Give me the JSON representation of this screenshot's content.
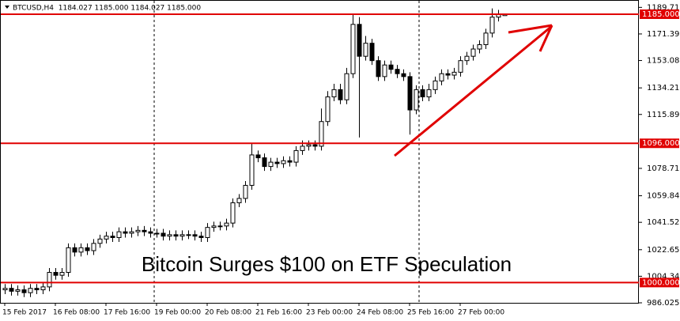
{
  "chart_data": {
    "type": "candlestick",
    "header": "BTCUSD,H4  1184.027 1185.000 1184.027 1185.000",
    "annotation": "Bitcoin Surges $100 on ETF Speculation",
    "categories": [
      "15 Feb 2017",
      null,
      null,
      null,
      null,
      null,
      null,
      null,
      "16 Feb 08:00",
      null,
      null,
      null,
      null,
      null,
      null,
      null,
      "17 Feb 16:00",
      null,
      null,
      null,
      null,
      null,
      null,
      null,
      "19 Feb 00:00",
      null,
      null,
      null,
      null,
      null,
      null,
      null,
      "20 Feb 08:00",
      null,
      null,
      null,
      null,
      null,
      null,
      null,
      "21 Feb 16:00",
      null,
      null,
      null,
      null,
      null,
      null,
      null,
      "23 Feb 00:00",
      null,
      null,
      null,
      null,
      null,
      null,
      null,
      "24 Feb 08:00",
      null,
      null,
      null,
      null,
      null,
      null,
      null,
      "25 Feb 16:00",
      null,
      null,
      null,
      null,
      null,
      null,
      null,
      "27 Feb 00:00",
      null,
      null,
      null,
      null,
      null,
      null,
      null
    ],
    "open": [
      995,
      996,
      994,
      995,
      993,
      996,
      995,
      997,
      1007,
      1005,
      1007,
      1024,
      1021,
      1024,
      1022,
      1027,
      1030,
      1032,
      1031,
      1035,
      1034,
      1035,
      1036,
      1035,
      1034,
      1034,
      1032,
      1033,
      1032,
      1033,
      1033,
      1032,
      1031,
      1038,
      1039,
      1039,
      1041,
      1055,
      1058,
      1067,
      1088,
      1086,
      1080,
      1083,
      1082,
      1084,
      1083,
      1091,
      1094,
      1095,
      1094,
      1111,
      1128,
      1133,
      1126,
      1144,
      1178,
      1156,
      1165,
      1153,
      1142,
      1150,
      1147,
      1144,
      1142,
      1119,
      1133,
      1128,
      1133,
      1139,
      1144,
      1143,
      1145,
      1153,
      1156,
      1161,
      1164,
      1172,
      1183,
      1184.027
    ],
    "high": [
      999,
      999,
      998,
      998,
      999,
      999,
      1000,
      1010,
      1010,
      1010,
      1027,
      1027,
      1027,
      1027,
      1030,
      1033,
      1035,
      1035,
      1038,
      1038,
      1038,
      1039,
      1039,
      1038,
      1037,
      1037,
      1036,
      1036,
      1036,
      1036,
      1036,
      1035,
      1041,
      1042,
      1042,
      1044,
      1058,
      1061,
      1070,
      1096,
      1091,
      1089,
      1086,
      1086,
      1087,
      1087,
      1094,
      1098,
      1098,
      1098,
      1120,
      1132,
      1137,
      1137,
      1148,
      1185,
      1183,
      1170,
      1168,
      1156,
      1153,
      1153,
      1150,
      1147,
      1145,
      1136,
      1136,
      1137,
      1142,
      1147,
      1147,
      1148,
      1156,
      1159,
      1164,
      1167,
      1175,
      1189,
      1188,
      1185
    ],
    "low": [
      992,
      991,
      991,
      990,
      990,
      992,
      992,
      994,
      1002,
      1002,
      1004,
      1018,
      1018,
      1019,
      1019,
      1024,
      1027,
      1028,
      1028,
      1031,
      1031,
      1032,
      1032,
      1031,
      1031,
      1029,
      1029,
      1029,
      1029,
      1030,
      1029,
      1028,
      1028,
      1035,
      1036,
      1036,
      1038,
      1052,
      1055,
      1064,
      1083,
      1077,
      1077,
      1079,
      1079,
      1080,
      1080,
      1088,
      1091,
      1091,
      1091,
      1108,
      1125,
      1123,
      1123,
      1141,
      1100,
      1153,
      1150,
      1139,
      1139,
      1144,
      1141,
      1139,
      1102,
      1116,
      1125,
      1125,
      1130,
      1136,
      1140,
      1140,
      1142,
      1150,
      1153,
      1158,
      1161,
      1169,
      1180,
      1184.027
    ],
    "close": [
      996,
      994,
      995,
      993,
      996,
      995,
      997,
      1007,
      1005,
      1007,
      1024,
      1021,
      1024,
      1022,
      1027,
      1030,
      1032,
      1031,
      1035,
      1034,
      1035,
      1036,
      1035,
      1034,
      1034,
      1032,
      1033,
      1032,
      1033,
      1033,
      1032,
      1031,
      1038,
      1039,
      1039,
      1041,
      1055,
      1058,
      1067,
      1088,
      1086,
      1080,
      1083,
      1082,
      1084,
      1083,
      1091,
      1094,
      1095,
      1094,
      1111,
      1128,
      1133,
      1126,
      1144,
      1178,
      1156,
      1165,
      1153,
      1142,
      1150,
      1147,
      1144,
      1142,
      1119,
      1133,
      1128,
      1133,
      1139,
      1144,
      1143,
      1145,
      1153,
      1156,
      1161,
      1164,
      1172,
      1183,
      1185,
      1185
    ],
    "ylim": [
      986.025,
      1194.8
    ],
    "yticks": [
      {
        "value": 1189.71,
        "label": "1189.710"
      },
      {
        "value": 1171.395,
        "label": "1171.395"
      },
      {
        "value": 1153.08,
        "label": "1153.080"
      },
      {
        "value": 1134.21,
        "label": "1134.210"
      },
      {
        "value": 1115.895,
        "label": "1115.895"
      },
      {
        "value": 1078.71,
        "label": "1078.710"
      },
      {
        "value": 1059.84,
        "label": "1059.840"
      },
      {
        "value": 1041.525,
        "label": "1041.525"
      },
      {
        "value": 1022.655,
        "label": "1022.655"
      },
      {
        "value": 1004.34,
        "label": "1004.340"
      },
      {
        "value": 986.025,
        "label": "986.025"
      }
    ],
    "levels": [
      {
        "value": 1185,
        "label": "1185.000"
      },
      {
        "value": 1096,
        "label": "1096.000"
      },
      {
        "value": 1000,
        "label": "1000.000"
      }
    ],
    "level_color": "#e00000",
    "up_color": "#ffffff",
    "down_color": "#000000"
  }
}
